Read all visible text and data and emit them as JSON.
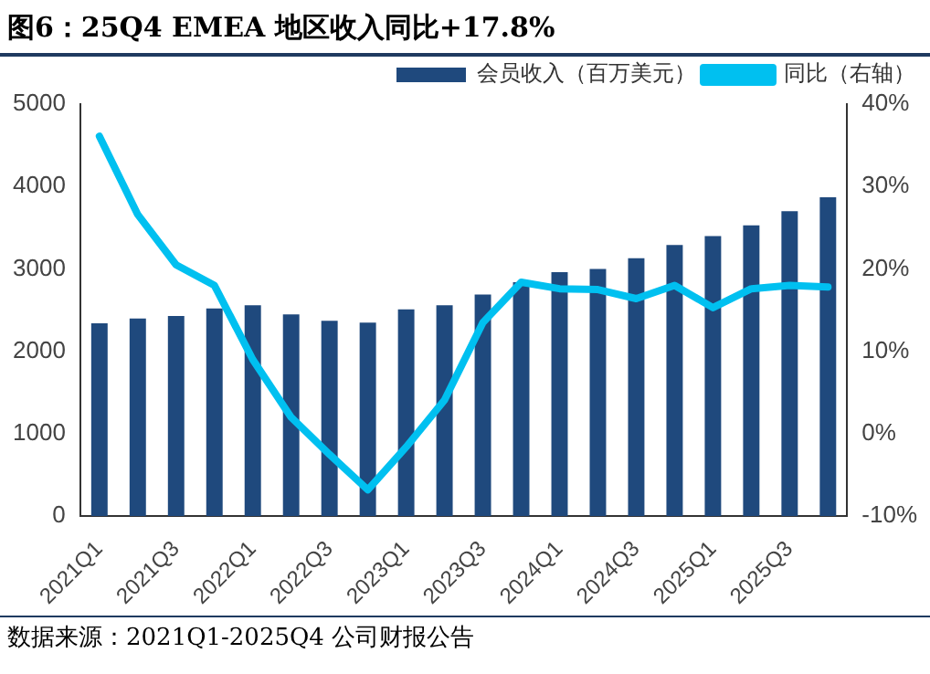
{
  "chart_data": {
    "type": "bar",
    "title": "图6：25Q4 EMEA 地区收入同比+17.8%",
    "categories": [
      "2021Q1",
      null,
      "2021Q3",
      null,
      "2022Q1",
      null,
      "2022Q3",
      null,
      "2023Q1",
      null,
      "2023Q3",
      null,
      "2024Q1",
      null,
      "2024Q3",
      null,
      "2025Q1",
      null,
      "2025Q3",
      null
    ],
    "series": [
      {
        "name": "会员收入（百万美元）",
        "color": "#1f497d",
        "values": [
          2340,
          2400,
          2430,
          2520,
          2560,
          2450,
          2370,
          2350,
          2510,
          2560,
          2690,
          2840,
          2960,
          3000,
          3130,
          3290,
          3400,
          3530,
          3700,
          3870
        ]
      },
      {
        "name": "同比（右轴）",
        "type": "line",
        "axis": "y2",
        "color": "#00c0f0",
        "values": [
          36.1,
          26.6,
          20.5,
          18.0,
          9.0,
          2.0,
          -2.5,
          -6.8,
          -1.6,
          4.1,
          13.5,
          18.4,
          17.6,
          17.5,
          16.4,
          18.0,
          15.3,
          17.6,
          18.0,
          17.8
        ]
      }
    ],
    "ylim": [
      0,
      5000
    ],
    "yticks": [
      0,
      1000,
      2000,
      3000,
      4000,
      5000
    ],
    "y2lim": [
      -10,
      40
    ],
    "y2ticks": [
      {
        "value": -10,
        "label": "-10%"
      },
      {
        "value": 0,
        "label": "0%"
      },
      {
        "value": 10,
        "label": "10%"
      },
      {
        "value": 20,
        "label": "20%"
      },
      {
        "value": 30,
        "label": "30%"
      },
      {
        "value": 40,
        "label": "40%"
      }
    ],
    "grid": false,
    "legend": "top right",
    "marker": "none",
    "line_style": "solid",
    "annotations": [
      "数据来源：2021Q1-2025Q4 公司财报公告"
    ]
  }
}
